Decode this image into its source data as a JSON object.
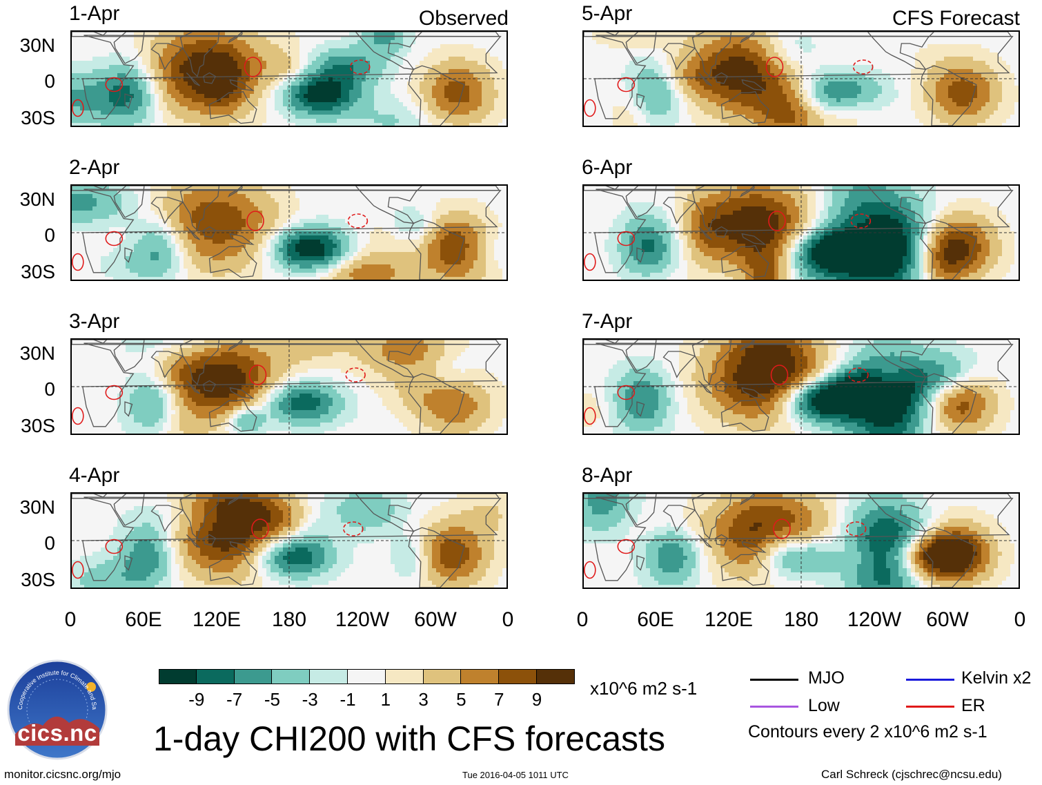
{
  "panels": [
    {
      "date": "1-Apr",
      "corner": "Observed",
      "seed": 1
    },
    {
      "date": "2-Apr",
      "corner": "",
      "seed": 2
    },
    {
      "date": "3-Apr",
      "corner": "",
      "seed": 3
    },
    {
      "date": "4-Apr",
      "corner": "",
      "seed": 4
    },
    {
      "date": "5-Apr",
      "corner": "CFS Forecast",
      "seed": 5
    },
    {
      "date": "6-Apr",
      "corner": "",
      "seed": 6
    },
    {
      "date": "7-Apr",
      "corner": "",
      "seed": 7
    },
    {
      "date": "8-Apr",
      "corner": "",
      "seed": 8
    }
  ],
  "lat_labels": [
    "30N",
    "0",
    "30S"
  ],
  "lon_labels": [
    "0",
    "60E",
    "120E",
    "180",
    "120W",
    "60W",
    "0"
  ],
  "colorbar": {
    "colors": [
      "#013c30",
      "#0b6a5e",
      "#3c9a8f",
      "#7fcdc0",
      "#c6ebe5",
      "#f5f5f5",
      "#f6e8c3",
      "#dfc27d",
      "#bf812d",
      "#8c510a",
      "#553008"
    ],
    "ticks": [
      "-9",
      "-7",
      "-5",
      "-3",
      "-1",
      "1",
      "3",
      "5",
      "7",
      "9"
    ],
    "units": "x10^6 m2 s-1"
  },
  "legend": {
    "items": [
      {
        "label": "MJO",
        "color": "#000000"
      },
      {
        "label": "Kelvin x2",
        "color": "#1a1adc"
      },
      {
        "label": "Low",
        "color": "#a855e0"
      },
      {
        "label": "ER",
        "color": "#e01a1a"
      }
    ],
    "note": "Contours every 2 x10^6 m2 s-1"
  },
  "logo": {
    "text": "cics.nc",
    "ring_text": "Cooperative Institute for Climate and Satellites"
  },
  "main_title": "1-day CHI200 with CFS forecasts",
  "footer": {
    "url": "monitor.cicsnc.org/mjo",
    "timestamp": "Tue 2016-04-05 1011 UTC",
    "author": "Carl Schreck (cjschrec@ncsu.edu)"
  }
}
